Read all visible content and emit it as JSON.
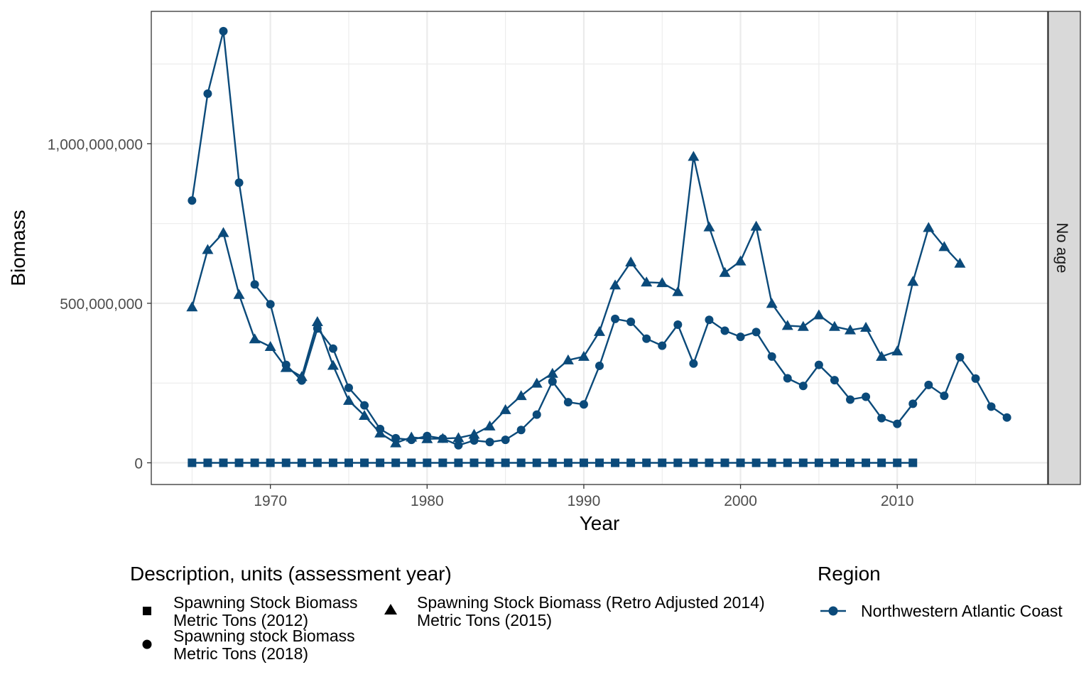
{
  "chart_data": {
    "type": "line",
    "xlabel": "Year",
    "ylabel": "Biomass",
    "facet_label": "No age",
    "xlim": [
      1962.4,
      2019.6
    ],
    "ylim": [
      -68000000,
      1415000000
    ],
    "x_ticks": [
      1970,
      1980,
      1990,
      2000,
      2010
    ],
    "x_tick_labels": [
      "1970",
      "1980",
      "1990",
      "2000",
      "2010"
    ],
    "y_ticks": [
      0,
      500000000,
      1000000000
    ],
    "y_tick_labels": [
      "0",
      "500,000,000",
      "1,000,000,000"
    ],
    "color": "#0b4a7a",
    "grid": true,
    "series": [
      {
        "name": "Spawning stock Biomass\nMetric Tons (2018)",
        "marker": "circle",
        "x": [
          1965,
          1966,
          1967,
          1968,
          1969,
          1970,
          1971,
          1972,
          1973,
          1974,
          1975,
          1976,
          1977,
          1978,
          1979,
          1980,
          1981,
          1982,
          1983,
          1984,
          1985,
          1986,
          1987,
          1988,
          1989,
          1990,
          1991,
          1992,
          1993,
          1994,
          1995,
          1996,
          1997,
          1998,
          1999,
          2000,
          2001,
          2002,
          2003,
          2004,
          2005,
          2006,
          2007,
          2008,
          2009,
          2010,
          2011,
          2012,
          2013,
          2014,
          2015,
          2016,
          2017
        ],
        "y": [
          822000000,
          1157000000,
          1353000000,
          878000000,
          559000000,
          497000000,
          307000000,
          258000000,
          421000000,
          358000000,
          235000000,
          180000000,
          106000000,
          77000000,
          72000000,
          84000000,
          76000000,
          55000000,
          70000000,
          65000000,
          72000000,
          103000000,
          151000000,
          255000000,
          190000000,
          183000000,
          304000000,
          451000000,
          442000000,
          389000000,
          367000000,
          433000000,
          311000000,
          448000000,
          414000000,
          395000000,
          410000000,
          333000000,
          265000000,
          241000000,
          307000000,
          259000000,
          198000000,
          207000000,
          140000000,
          122000000,
          185000000,
          244000000,
          210000000,
          331000000,
          264000000,
          176000000,
          142000000
        ]
      },
      {
        "name": "Spawning Stock Biomass (Retro Adjusted 2014)\nMetric Tons (2015)",
        "marker": "triangle",
        "x": [
          1965,
          1966,
          1967,
          1968,
          1969,
          1970,
          1971,
          1972,
          1973,
          1974,
          1975,
          1976,
          1977,
          1978,
          1979,
          1980,
          1981,
          1982,
          1983,
          1984,
          1985,
          1986,
          1987,
          1988,
          1989,
          1990,
          1991,
          1992,
          1993,
          1994,
          1995,
          1996,
          1997,
          1998,
          1999,
          2000,
          2001,
          2002,
          2003,
          2004,
          2005,
          2006,
          2007,
          2008,
          2009,
          2010,
          2011,
          2012,
          2013,
          2014
        ],
        "y": [
          488000000,
          668000000,
          721000000,
          527000000,
          388000000,
          364000000,
          298000000,
          270000000,
          442000000,
          305000000,
          195000000,
          148000000,
          93000000,
          62000000,
          80000000,
          75000000,
          76000000,
          78000000,
          89000000,
          115000000,
          166000000,
          210000000,
          249000000,
          280000000,
          322000000,
          333000000,
          411000000,
          557000000,
          629000000,
          566000000,
          564000000,
          536000000,
          960000000,
          739000000,
          596000000,
          632000000,
          741000000,
          499000000,
          430000000,
          427000000,
          463000000,
          427000000,
          416000000,
          424000000,
          333000000,
          350000000,
          568000000,
          737000000,
          677000000,
          625000000
        ]
      },
      {
        "name": "Spawning Stock Biomass\nMetric Tons (2012)",
        "marker": "square",
        "x": [
          1965,
          1966,
          1967,
          1968,
          1969,
          1970,
          1971,
          1972,
          1973,
          1974,
          1975,
          1976,
          1977,
          1978,
          1979,
          1980,
          1981,
          1982,
          1983,
          1984,
          1985,
          1986,
          1987,
          1988,
          1989,
          1990,
          1991,
          1992,
          1993,
          1994,
          1995,
          1996,
          1997,
          1998,
          1999,
          2000,
          2001,
          2002,
          2003,
          2004,
          2005,
          2006,
          2007,
          2008,
          2009,
          2010,
          2011
        ],
        "y": [
          0,
          0,
          0,
          0,
          0,
          0,
          0,
          0,
          0,
          0,
          0,
          0,
          0,
          0,
          0,
          0,
          0,
          0,
          0,
          0,
          0,
          0,
          0,
          0,
          0,
          0,
          0,
          0,
          0,
          0,
          0,
          0,
          0,
          0,
          0,
          0,
          0,
          0,
          0,
          0,
          0,
          0,
          0,
          0,
          0,
          0,
          0
        ]
      }
    ]
  },
  "legend": {
    "shape_title": "Description, units (assessment year)",
    "items": [
      {
        "label": "Spawning Stock Biomass\nMetric Tons (2012)",
        "marker": "square"
      },
      {
        "label": "Spawning stock Biomass\nMetric Tons (2018)",
        "marker": "circle"
      },
      {
        "label": "Spawning Stock Biomass (Retro Adjusted 2014)\nMetric Tons (2015)",
        "marker": "triangle"
      }
    ],
    "region_title": "Region",
    "region_label": "Northwestern Atlantic Coast"
  }
}
